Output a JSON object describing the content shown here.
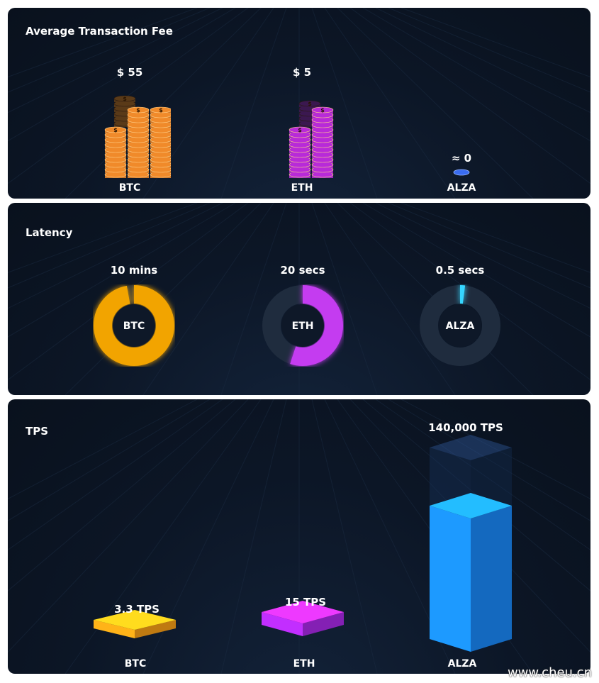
{
  "fee": {
    "title": "Average Transaction Fee",
    "items": [
      {
        "category": "BTC",
        "label": "$ 55",
        "value": 55,
        "color": "#f08a2a",
        "dim": "#5a3a18"
      },
      {
        "category": "ETH",
        "label": "$ 5",
        "value": 5,
        "color": "#b82ad8",
        "dim": "#3b1850"
      },
      {
        "category": "ALZA",
        "label": "≈ 0",
        "value": 0,
        "color": "#3a6cf0"
      }
    ]
  },
  "latency": {
    "title": "Latency",
    "items": [
      {
        "category": "BTC",
        "label": "10 mins",
        "fraction": 0.97,
        "color": "#f2a400"
      },
      {
        "category": "ETH",
        "label": "20 secs",
        "fraction": 0.55,
        "color": "#c43cf0"
      },
      {
        "category": "ALZA",
        "label": "0.5 secs",
        "fraction": 0.02,
        "color": "#36d6ff"
      }
    ]
  },
  "tps": {
    "title": "TPS",
    "items": [
      {
        "category": "BTC",
        "label": "3.3 TPS",
        "value": 3.3,
        "color": "#ffa316"
      },
      {
        "category": "ETH",
        "label": "15 TPS",
        "value": 15,
        "color": "#b02af0"
      },
      {
        "category": "ALZA",
        "label": "140,000 TPS",
        "value": 140000,
        "color": "#1a8cff"
      }
    ]
  },
  "chart_data": [
    {
      "type": "bar",
      "title": "Average Transaction Fee",
      "categories": [
        "BTC",
        "ETH",
        "ALZA"
      ],
      "values": [
        55,
        5,
        0
      ],
      "unit": "$"
    },
    {
      "type": "pie",
      "title": "Latency",
      "categories": [
        "BTC",
        "ETH",
        "ALZA"
      ],
      "values": [
        "10 mins",
        "20 secs",
        "0.5 secs"
      ]
    },
    {
      "type": "bar",
      "title": "TPS",
      "categories": [
        "BTC",
        "ETH",
        "ALZA"
      ],
      "values": [
        3.3,
        15,
        140000
      ],
      "unit": "TPS"
    }
  ],
  "watermark": "www.cheu.cn"
}
